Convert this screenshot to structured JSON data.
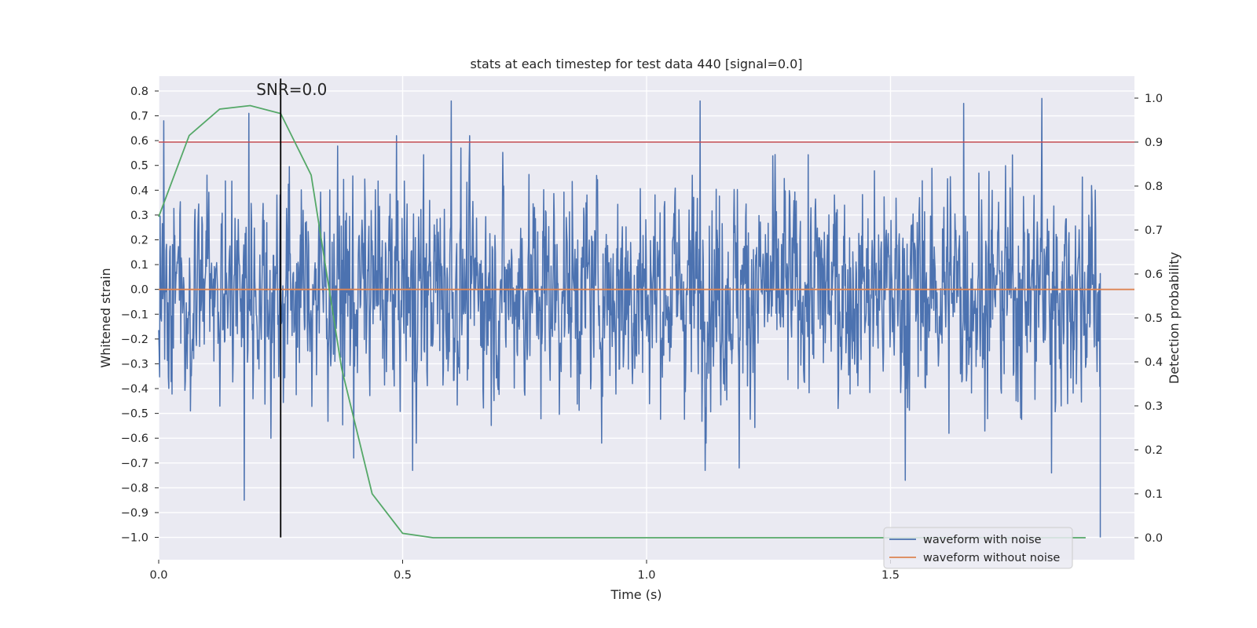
{
  "chart_data": {
    "type": "line",
    "title": "stats at each timestep for test data 440 [signal=0.0]",
    "xlabel": "Time (s)",
    "ylabel": "Whitened strain",
    "y2label": "Detection probability",
    "xlim": [
      0.0,
      2.0
    ],
    "ylim": [
      -1.09,
      0.86
    ],
    "y2lim": [
      -0.05,
      1.05
    ],
    "xticks": [
      0.0,
      0.5,
      1.0,
      1.5
    ],
    "xtick_labels": [
      "0.0",
      "0.5",
      "1.0",
      "1.5"
    ],
    "yticks": [
      0.8,
      0.7,
      0.6,
      0.5,
      0.4,
      0.3,
      0.2,
      0.1,
      0.0,
      -0.1,
      -0.2,
      -0.3,
      -0.4,
      -0.5,
      -0.6,
      -0.7,
      -0.8,
      -0.9,
      -1.0
    ],
    "ytick_labels": [
      "0.8",
      "0.7",
      "0.6",
      "0.5",
      "0.4",
      "0.3",
      "0.2",
      "0.1",
      "0.0",
      "−0.1",
      "−0.2",
      "−0.3",
      "−0.4",
      "−0.5",
      "−0.6",
      "−0.7",
      "−0.8",
      "−0.9",
      "−1.0"
    ],
    "y2ticks": [
      1.0,
      0.9,
      0.8,
      0.7,
      0.6,
      0.5,
      0.4,
      0.3,
      0.2,
      0.1,
      0.0
    ],
    "y2tick_labels": [
      "1.0",
      "0.9",
      "0.8",
      "0.7",
      "0.6",
      "0.5",
      "0.4",
      "0.3",
      "0.2",
      "0.1",
      "0.0"
    ],
    "grid": true,
    "legend_position": "lower-right",
    "series": [
      {
        "name": "waveform with noise",
        "color": "#4c72b0",
        "axis": "left",
        "noise": {
          "num_points": 2048,
          "t_start": 0.0,
          "t_end": 1.93,
          "amplitude": 0.27,
          "final_value": -1.0
        },
        "spikes": [
          {
            "x": 0.01,
            "y": 0.68
          },
          {
            "x": 0.175,
            "y": -0.85
          },
          {
            "x": 0.185,
            "y": 0.71
          },
          {
            "x": 0.23,
            "y": -0.6
          },
          {
            "x": 0.6,
            "y": 0.76
          },
          {
            "x": 0.52,
            "y": -0.73
          },
          {
            "x": 0.4,
            "y": -0.68
          },
          {
            "x": 1.11,
            "y": 0.76
          },
          {
            "x": 1.12,
            "y": -0.73
          },
          {
            "x": 1.19,
            "y": -0.72
          },
          {
            "x": 1.53,
            "y": -0.77
          },
          {
            "x": 1.65,
            "y": 0.75
          },
          {
            "x": 1.81,
            "y": 0.77
          },
          {
            "x": 1.83,
            "y": -0.74
          },
          {
            "x": 0.065,
            "y": -0.49
          },
          {
            "x": 1.92,
            "y": 0.4
          }
        ]
      },
      {
        "name": "waveform without noise",
        "color": "#dd8452",
        "axis": "left",
        "x": [
          0.0,
          2.0
        ],
        "y": [
          0.0,
          0.0
        ]
      },
      {
        "name": "detection probability",
        "color": "#55a868",
        "axis": "right",
        "x": [
          0.0,
          0.0625,
          0.125,
          0.1875,
          0.25,
          0.3125,
          0.375,
          0.4375,
          0.5,
          0.5625,
          0.625,
          0.75,
          1.0,
          1.25,
          1.5,
          1.75,
          1.9
        ],
        "y": [
          0.73,
          0.915,
          0.975,
          0.983,
          0.965,
          0.825,
          0.385,
          0.1,
          0.01,
          0.0,
          0.0,
          0.0,
          0.0,
          0.0,
          0.0,
          0.0,
          0.0
        ]
      }
    ],
    "threshold": {
      "axis": "right",
      "value": 0.9,
      "color": "#c44e52"
    },
    "marker_line": {
      "x": 0.25,
      "y_from": -1.0,
      "y_to": 0.85,
      "color": "#000000"
    },
    "annotation": {
      "text": "SNR=0.0",
      "x": 0.2,
      "y": 0.8
    },
    "legend": [
      "waveform with noise",
      "waveform without noise"
    ]
  }
}
